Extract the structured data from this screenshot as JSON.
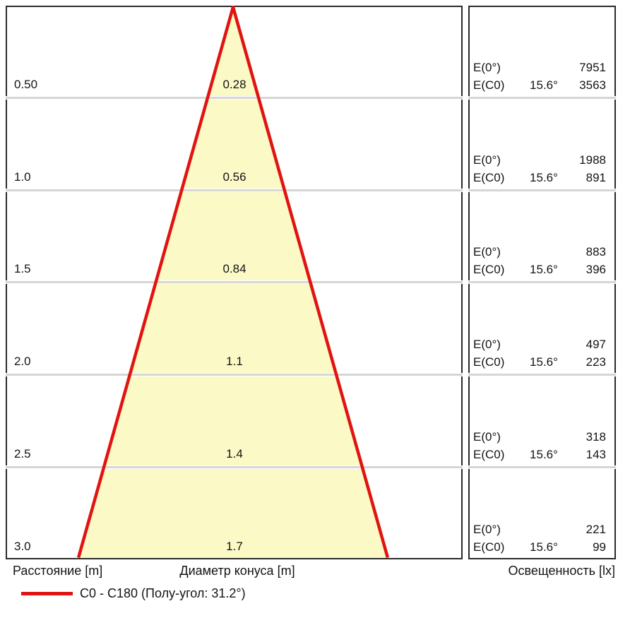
{
  "chart_data": {
    "type": "table",
    "description": "Luminaire cone diagram: beam diameter and illuminance vs distance",
    "columns": {
      "distance": "Расстояние [m]",
      "diameter": "Диаметр конуса [m]",
      "illuminance": "Освещенность [lx]"
    },
    "row_labels": {
      "e0": "E(0°)",
      "ec0": "E(C0)"
    },
    "rows": [
      {
        "distance": "0.50",
        "diameter": "0.28",
        "e0": "7951",
        "angle": "15.6°",
        "ec0": "3563"
      },
      {
        "distance": "1.0",
        "diameter": "0.56",
        "e0": "1988",
        "angle": "15.6°",
        "ec0": "891"
      },
      {
        "distance": "1.5",
        "diameter": "0.84",
        "e0": "883",
        "angle": "15.6°",
        "ec0": "396"
      },
      {
        "distance": "2.0",
        "diameter": "1.1",
        "e0": "497",
        "angle": "15.6°",
        "ec0": "223"
      },
      {
        "distance": "2.5",
        "diameter": "1.4",
        "e0": "318",
        "angle": "15.6°",
        "ec0": "143"
      },
      {
        "distance": "3.0",
        "diameter": "1.7",
        "e0": "221",
        "angle": "15.6°",
        "ec0": "99"
      }
    ],
    "beam": {
      "half_angle_deg": 15.6,
      "full_angle_deg": 31.2,
      "max_distance_m": 3.0
    },
    "legend": {
      "label": "C0 - C180 (Полу-угол: 31.2°)"
    }
  },
  "colors": {
    "cone_fill": "#fbf9c6",
    "cone_edge": "#e01410",
    "divider": "#d6d6d6",
    "border": "#2a2a2a",
    "text": "#141414",
    "background": "#ffffff"
  }
}
